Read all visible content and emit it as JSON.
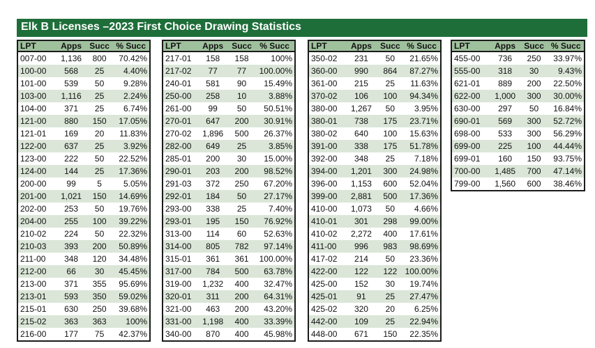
{
  "title": "Elk B Licenses  –2023 First Choice Drawing Statistics",
  "colors": {
    "banner": "#1e6e3a",
    "header_bg": "#9fc09d",
    "stripe": "#dbe6d8"
  },
  "columns": [
    "LPT",
    "Apps",
    "Succ",
    "% Succ"
  ],
  "tables": [
    {
      "rows": [
        [
          "007-00",
          "1,136",
          "800",
          "70.42%"
        ],
        [
          "100-00",
          "568",
          "25",
          "4.40%"
        ],
        [
          "101-00",
          "539",
          "50",
          "9.28%"
        ],
        [
          "103-00",
          "1,116",
          "25",
          "2.24%"
        ],
        [
          "104-00",
          "371",
          "25",
          "6.74%"
        ],
        [
          "121-00",
          "880",
          "150",
          "17.05%"
        ],
        [
          "121-01",
          "169",
          "20",
          "11.83%"
        ],
        [
          "122-00",
          "637",
          "25",
          "3.92%"
        ],
        [
          "123-00",
          "222",
          "50",
          "22.52%"
        ],
        [
          "124-00",
          "144",
          "25",
          "17.36%"
        ],
        [
          "200-00",
          "99",
          "5",
          "5.05%"
        ],
        [
          "201-00",
          "1,021",
          "150",
          "14.69%"
        ],
        [
          "202-00",
          "253",
          "50",
          "19.76%"
        ],
        [
          "204-00",
          "255",
          "100",
          "39.22%"
        ],
        [
          "210-02",
          "224",
          "50",
          "22.32%"
        ],
        [
          "210-03",
          "393",
          "200",
          "50.89%"
        ],
        [
          "211-00",
          "348",
          "120",
          "34.48%"
        ],
        [
          "212-00",
          "66",
          "30",
          "45.45%"
        ],
        [
          "213-00",
          "371",
          "355",
          "95.69%"
        ],
        [
          "213-01",
          "593",
          "350",
          "59.02%"
        ],
        [
          "215-01",
          "630",
          "250",
          "39.68%"
        ],
        [
          "215-02",
          "363",
          "363",
          "100%"
        ],
        [
          "216-00",
          "177",
          "75",
          "42.37%"
        ]
      ]
    },
    {
      "rows": [
        [
          "217-01",
          "158",
          "158",
          "100%"
        ],
        [
          "217-02",
          "77",
          "77",
          "100.00%"
        ],
        [
          "240-01",
          "581",
          "90",
          "15.49%"
        ],
        [
          "250-00",
          "258",
          "10",
          "3.88%"
        ],
        [
          "261-00",
          "99",
          "50",
          "50.51%"
        ],
        [
          "270-01",
          "647",
          "200",
          "30.91%"
        ],
        [
          "270-02",
          "1,896",
          "500",
          "26.37%"
        ],
        [
          "282-00",
          "649",
          "25",
          "3.85%"
        ],
        [
          "285-01",
          "200",
          "30",
          "15.00%"
        ],
        [
          "290-01",
          "203",
          "200",
          "98.52%"
        ],
        [
          "291-03",
          "372",
          "250",
          "67.20%"
        ],
        [
          "292-01",
          "184",
          "50",
          "27.17%"
        ],
        [
          "293-00",
          "338",
          "25",
          "7.40%"
        ],
        [
          "293-01",
          "195",
          "150",
          "76.92%"
        ],
        [
          "313-00",
          "114",
          "60",
          "52.63%"
        ],
        [
          "314-00",
          "805",
          "782",
          "97.14%"
        ],
        [
          "315-01",
          "361",
          "361",
          "100.00%"
        ],
        [
          "317-00",
          "784",
          "500",
          "63.78%"
        ],
        [
          "319-00",
          "1,232",
          "400",
          "32.47%"
        ],
        [
          "320-01",
          "311",
          "200",
          "64.31%"
        ],
        [
          "321-00",
          "463",
          "200",
          "43.20%"
        ],
        [
          "331-00",
          "1,198",
          "400",
          "33.39%"
        ],
        [
          "340-00",
          "870",
          "400",
          "45.98%"
        ]
      ]
    },
    {
      "rows": [
        [
          "350-02",
          "231",
          "50",
          "21.65%"
        ],
        [
          "360-00",
          "990",
          "864",
          "87.27%"
        ],
        [
          "361-00",
          "215",
          "25",
          "11.63%"
        ],
        [
          "370-02",
          "106",
          "100",
          "94.34%"
        ],
        [
          "380-00",
          "1,267",
          "50",
          "3.95%"
        ],
        [
          "380-01",
          "738",
          "175",
          "23.71%"
        ],
        [
          "380-02",
          "640",
          "100",
          "15.63%"
        ],
        [
          "391-00",
          "338",
          "175",
          "51.78%"
        ],
        [
          "392-00",
          "348",
          "25",
          "7.18%"
        ],
        [
          "394-00",
          "1,201",
          "300",
          "24.98%"
        ],
        [
          "396-00",
          "1,153",
          "600",
          "52.04%"
        ],
        [
          "399-00",
          "2,881",
          "500",
          "17.36%"
        ],
        [
          "410-00",
          "1,073",
          "50",
          "4.66%"
        ],
        [
          "410-01",
          "301",
          "298",
          "99.00%"
        ],
        [
          "410-02",
          "2,272",
          "400",
          "17.61%"
        ],
        [
          "411-00",
          "996",
          "983",
          "98.69%"
        ],
        [
          "417-02",
          "214",
          "50",
          "23.36%"
        ],
        [
          "422-00",
          "122",
          "122",
          "100.00%"
        ],
        [
          "425-00",
          "152",
          "30",
          "19.74%"
        ],
        [
          "425-01",
          "91",
          "25",
          "27.47%"
        ],
        [
          "425-02",
          "320",
          "20",
          "6.25%"
        ],
        [
          "442-00",
          "109",
          "25",
          "22.94%"
        ],
        [
          "448-00",
          "671",
          "150",
          "22.35%"
        ]
      ]
    },
    {
      "rows": [
        [
          "455-00",
          "736",
          "250",
          "33.97%"
        ],
        [
          "555-00",
          "318",
          "30",
          "9.43%"
        ],
        [
          "621-01",
          "889",
          "200",
          "22.50%"
        ],
        [
          "622-00",
          "1,000",
          "300",
          "30.00%"
        ],
        [
          "630-00",
          "297",
          "50",
          "16.84%"
        ],
        [
          "690-01",
          "569",
          "300",
          "52.72%"
        ],
        [
          "698-00",
          "533",
          "300",
          "56.29%"
        ],
        [
          "699-00",
          "225",
          "100",
          "44.44%"
        ],
        [
          "699-01",
          "160",
          "150",
          "93.75%"
        ],
        [
          "700-00",
          "1,485",
          "700",
          "47.14%"
        ],
        [
          "799-00",
          "1,560",
          "600",
          "38.46%"
        ]
      ]
    }
  ]
}
